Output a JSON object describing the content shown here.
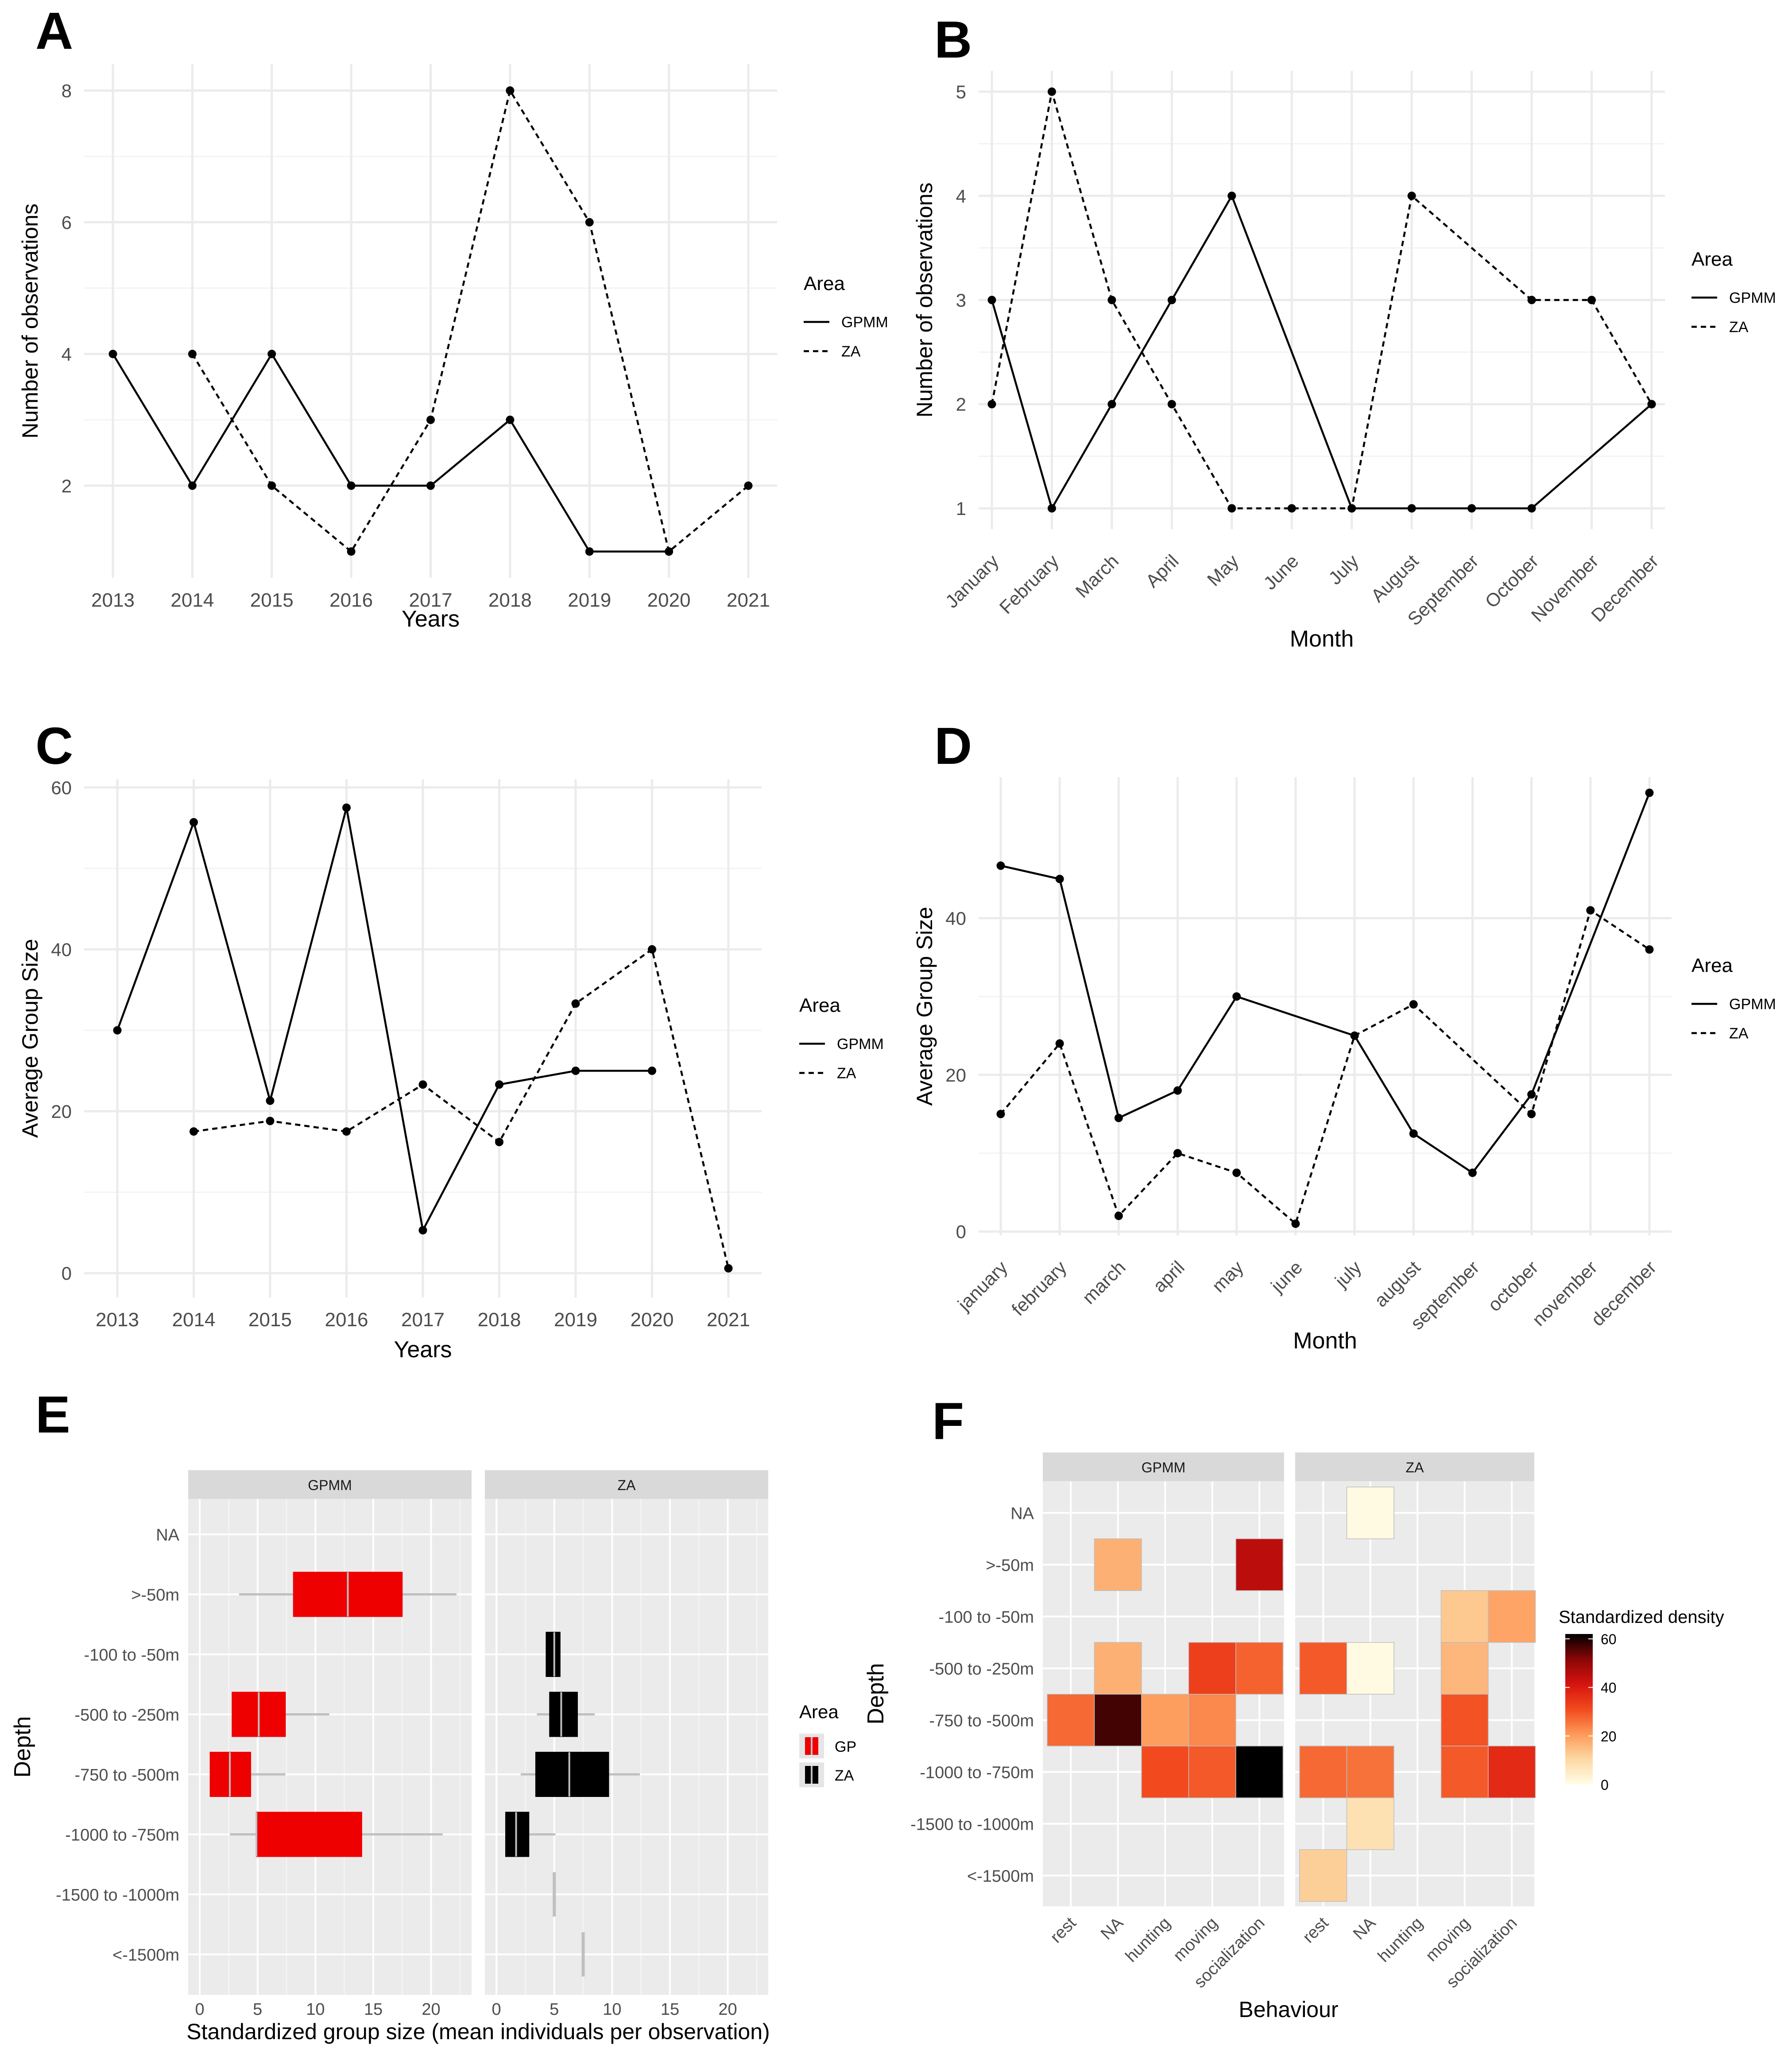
{
  "chart_data": [
    {
      "id": "A",
      "panel_label": "A",
      "type": "line",
      "xlabel": "Years",
      "ylabel": "Number of observations",
      "categories": [
        "2013",
        "2014",
        "2015",
        "2016",
        "2017",
        "2018",
        "2019",
        "2020",
        "2021"
      ],
      "ylim": [
        0.6,
        8.4
      ],
      "yticks": [
        2,
        4,
        6,
        8
      ],
      "grid": true,
      "legend": {
        "title": "Area",
        "position": "right",
        "entries": [
          "GPMM",
          "ZA"
        ]
      },
      "series": [
        {
          "name": "GPMM",
          "dash": "solid",
          "values": [
            4,
            2,
            4,
            2,
            2,
            3,
            1,
            1,
            null
          ]
        },
        {
          "name": "ZA",
          "dash": "dashed",
          "values": [
            null,
            4,
            2,
            1,
            3,
            8,
            6,
            1,
            2
          ]
        }
      ]
    },
    {
      "id": "B",
      "panel_label": "B",
      "type": "line",
      "xlabel": "Month",
      "ylabel": "Number of observations",
      "categories": [
        "January",
        "February",
        "March",
        "April",
        "May",
        "June",
        "July",
        "August",
        "September",
        "October",
        "November",
        "December"
      ],
      "ylim": [
        0.8,
        5.2
      ],
      "yticks": [
        1,
        2,
        3,
        4,
        5
      ],
      "grid": true,
      "legend": {
        "title": "Area",
        "position": "right",
        "entries": [
          "GPMM",
          "ZA"
        ]
      },
      "series": [
        {
          "name": "GPMM",
          "dash": "solid",
          "values": [
            3,
            1,
            2,
            3,
            4,
            null,
            1,
            1,
            1,
            1,
            null,
            2
          ]
        },
        {
          "name": "ZA",
          "dash": "dashed",
          "values": [
            2,
            5,
            3,
            2,
            1,
            1,
            1,
            4,
            null,
            3,
            3,
            2
          ]
        }
      ]
    },
    {
      "id": "C",
      "panel_label": "C",
      "type": "line",
      "xlabel": "Years",
      "ylabel": "Average Group Size",
      "categories": [
        "2013",
        "2014",
        "2015",
        "2016",
        "2017",
        "2018",
        "2019",
        "2020",
        "2021"
      ],
      "ylim": [
        -3,
        61
      ],
      "yticks": [
        0,
        20,
        40,
        60
      ],
      "grid": true,
      "legend": {
        "title": "Area",
        "position": "right",
        "entries": [
          "GPMM",
          "ZA"
        ]
      },
      "series": [
        {
          "name": "GPMM",
          "dash": "solid",
          "values": [
            30,
            55.7,
            21.3,
            57.5,
            5.3,
            23.3,
            25,
            25,
            null
          ]
        },
        {
          "name": "ZA",
          "dash": "dashed",
          "values": [
            null,
            17.5,
            18.8,
            17.5,
            23.3,
            16.2,
            33.3,
            40,
            0.6
          ]
        }
      ]
    },
    {
      "id": "D",
      "panel_label": "D",
      "type": "line",
      "xlabel": "Month",
      "ylabel": "Average Group Size",
      "categories": [
        "january",
        "february",
        "march",
        "april",
        "may",
        "june",
        "july",
        "august",
        "september",
        "october",
        "november",
        "december"
      ],
      "ylim": [
        -0.5,
        58
      ],
      "yticks": [
        0,
        20,
        40
      ],
      "grid": true,
      "legend": {
        "title": "Area",
        "position": "right",
        "entries": [
          "GPMM",
          "ZA"
        ]
      },
      "series": [
        {
          "name": "GPMM",
          "dash": "solid",
          "values": [
            46.7,
            45,
            14.5,
            18,
            30,
            null,
            25,
            12.5,
            7.5,
            17.5,
            null,
            56
          ]
        },
        {
          "name": "ZA",
          "dash": "dashed",
          "values": [
            15,
            24,
            2,
            10,
            7.5,
            1,
            25,
            29,
            null,
            15,
            41,
            36
          ]
        }
      ]
    },
    {
      "id": "E",
      "panel_label": "E",
      "type": "bar",
      "subtype": "faceted horizontal box plot",
      "xlabel": "Standardized group size (mean individuals per observation)",
      "ylabel": "Depth",
      "categories": [
        "NA",
        ">-50m",
        "-100 to -50m",
        "-500 to -250m",
        "-750 to -500m",
        "-1000 to -750m",
        "-1500 to -1000m",
        "<-1500m"
      ],
      "xlim": [
        -1,
        23.5
      ],
      "xticks": [
        0,
        5,
        10,
        15,
        20
      ],
      "facets": [
        "GPMM",
        "ZA"
      ],
      "legend": {
        "title": "Area",
        "position": "right",
        "entries": [
          "GP",
          "ZA"
        ]
      },
      "boxes": [
        {
          "facet": "GPMM",
          "depth": ">-50m",
          "min": 3.4,
          "q1": 8.1,
          "median": 12.8,
          "q3": 17.5,
          "max": 22.2
        },
        {
          "facet": "GPMM",
          "depth": "-500 to -250m",
          "min": 2.8,
          "q1": 2.8,
          "median": 5.1,
          "q3": 7.4,
          "max": 11.2
        },
        {
          "facet": "GPMM",
          "depth": "-750 to -500m",
          "min": 0.9,
          "q1": 0.9,
          "median": 2.6,
          "q3": 4.4,
          "max": 7.4
        },
        {
          "facet": "GPMM",
          "depth": "-1000 to -750m",
          "min": 2.6,
          "q1": 4.9,
          "median": 4.9,
          "q3": 14,
          "max": 21
        },
        {
          "facet": "ZA",
          "depth": "-100 to -50m",
          "min": 4.3,
          "q1": 4.3,
          "median": 5,
          "q3": 5.5,
          "max": 5.5
        },
        {
          "facet": "ZA",
          "depth": "-500 to -250m",
          "min": 3.5,
          "q1": 4.6,
          "median": 5.6,
          "q3": 7,
          "max": 8.5
        },
        {
          "facet": "ZA",
          "depth": "-750 to -500m",
          "min": 2.1,
          "q1": 3.4,
          "median": 6.3,
          "q3": 9.7,
          "max": 12.4
        },
        {
          "facet": "ZA",
          "depth": "-1000 to -750m",
          "min": 0.8,
          "q1": 0.8,
          "median": 1.7,
          "q3": 2.8,
          "max": 5.1
        },
        {
          "facet": "ZA",
          "depth": "-1500 to -1000m",
          "min": 5,
          "q1": 5,
          "median": 5,
          "q3": 5,
          "max": 5
        },
        {
          "facet": "ZA",
          "depth": "<-1500m",
          "min": 7.5,
          "q1": 7.5,
          "median": 7.5,
          "q3": 7.5,
          "max": 7.5
        }
      ]
    },
    {
      "id": "F",
      "panel_label": "F",
      "type": "heatmap",
      "xlabel": "Behaviour",
      "ylabel": "Depth",
      "x": [
        "rest",
        "NA",
        "hunting",
        "moving",
        "socialization"
      ],
      "y": [
        "NA",
        ">-50m",
        "-100 to -50m",
        "-500 to -250m",
        "-750 to -500m",
        "-1000 to -750m",
        "-1500 to -1000m",
        "<-1500m"
      ],
      "facets": [
        "GPMM",
        "ZA"
      ],
      "legend": {
        "title": "Standardized density",
        "position": "right",
        "ticks": [
          0,
          20,
          40,
          60
        ],
        "range": [
          0,
          62
        ]
      },
      "cells": [
        {
          "facet": "GPMM",
          "x": "NA",
          "y": ">-50m",
          "value": 17
        },
        {
          "facet": "GPMM",
          "x": "socialization",
          "y": ">-50m",
          "value": 45
        },
        {
          "facet": "GPMM",
          "x": "NA",
          "y": "-500 to -250m",
          "value": 17
        },
        {
          "facet": "GPMM",
          "x": "moving",
          "y": "-500 to -250m",
          "value": 33
        },
        {
          "facet": "GPMM",
          "x": "socialization",
          "y": "-500 to -250m",
          "value": 28
        },
        {
          "facet": "GPMM",
          "x": "rest",
          "y": "-750 to -500m",
          "value": 27
        },
        {
          "facet": "GPMM",
          "x": "NA",
          "y": "-750 to -500m",
          "value": 57
        },
        {
          "facet": "GPMM",
          "x": "hunting",
          "y": "-750 to -500m",
          "value": 20
        },
        {
          "facet": "GPMM",
          "x": "moving",
          "y": "-750 to -500m",
          "value": 23
        },
        {
          "facet": "GPMM",
          "x": "hunting",
          "y": "-1000 to -750m",
          "value": 31
        },
        {
          "facet": "GPMM",
          "x": "moving",
          "y": "-1000 to -750m",
          "value": 29
        },
        {
          "facet": "GPMM",
          "x": "socialization",
          "y": "-1000 to -750m",
          "value": 62
        },
        {
          "facet": "ZA",
          "x": "NA",
          "y": "NA",
          "value": 1
        },
        {
          "facet": "ZA",
          "x": "moving",
          "y": "-100 to -50m",
          "value": 13
        },
        {
          "facet": "ZA",
          "x": "socialization",
          "y": "-100 to -50m",
          "value": 19
        },
        {
          "facet": "ZA",
          "x": "rest",
          "y": "-500 to -250m",
          "value": 29
        },
        {
          "facet": "ZA",
          "x": "NA",
          "y": "-500 to -250m",
          "value": 1
        },
        {
          "facet": "ZA",
          "x": "moving",
          "y": "-500 to -250m",
          "value": 16
        },
        {
          "facet": "ZA",
          "x": "moving",
          "y": "-750 to -500m",
          "value": 30
        },
        {
          "facet": "ZA",
          "x": "rest",
          "y": "-1000 to -750m",
          "value": 27
        },
        {
          "facet": "ZA",
          "x": "NA",
          "y": "-1000 to -750m",
          "value": 26
        },
        {
          "facet": "ZA",
          "x": "moving",
          "y": "-1000 to -750m",
          "value": 29
        },
        {
          "facet": "ZA",
          "x": "socialization",
          "y": "-1000 to -750m",
          "value": 37
        },
        {
          "facet": "ZA",
          "x": "NA",
          "y": "-1500 to -1000m",
          "value": 8
        },
        {
          "facet": "ZA",
          "x": "rest",
          "y": "<-1500m",
          "value": 12
        }
      ]
    }
  ],
  "colors": {
    "line": "#000000",
    "panel_background": "#ffffff",
    "facet_background": "#ebebeb",
    "strip_background": "#d9d9d9",
    "grid_major": "#ebebeb",
    "box_gp": "#ee0000",
    "box_za": "#000000",
    "whisker": "#bfbfbf",
    "heat_scale": [
      "#fffde7",
      "#fdd9a4",
      "#fd9a5a",
      "#f24a1e",
      "#d6130f",
      "#8a0606",
      "#000000"
    ]
  }
}
